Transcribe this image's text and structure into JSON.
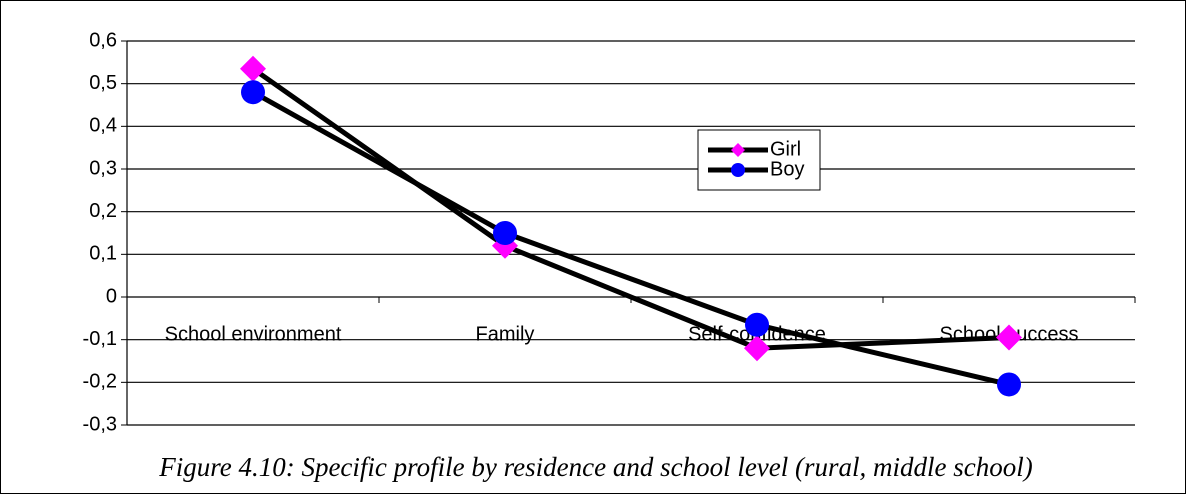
{
  "chart_data": {
    "type": "line",
    "caption": "Figure 4.10: Specific profile by residence and school level (rural, middle school)",
    "categories": [
      "School environment",
      "Family",
      "Self-confidence",
      "School success"
    ],
    "series": [
      {
        "name": "Girl",
        "color": "#ff00ff",
        "marker": "diamond",
        "values": [
          0.535,
          0.12,
          -0.12,
          -0.095
        ]
      },
      {
        "name": "Boy",
        "color": "#0000ff",
        "marker": "circle",
        "values": [
          0.48,
          0.15,
          -0.065,
          -0.205
        ]
      }
    ],
    "ylim": [
      -0.3,
      0.6
    ],
    "yticks": [
      {
        "value": -0.3,
        "label": "-0,3"
      },
      {
        "value": -0.2,
        "label": "-0,2"
      },
      {
        "value": -0.1,
        "label": "-0,1"
      },
      0,
      {
        "value": 0.1,
        "label": "0,1"
      },
      {
        "value": 0.2,
        "label": "0,2"
      },
      {
        "value": 0.3,
        "label": "0,3"
      },
      {
        "value": 0.4,
        "label": "0,4"
      },
      {
        "value": 0.5,
        "label": "0,5"
      },
      {
        "value": 0.6,
        "label": "0,6"
      }
    ],
    "grid": true
  }
}
